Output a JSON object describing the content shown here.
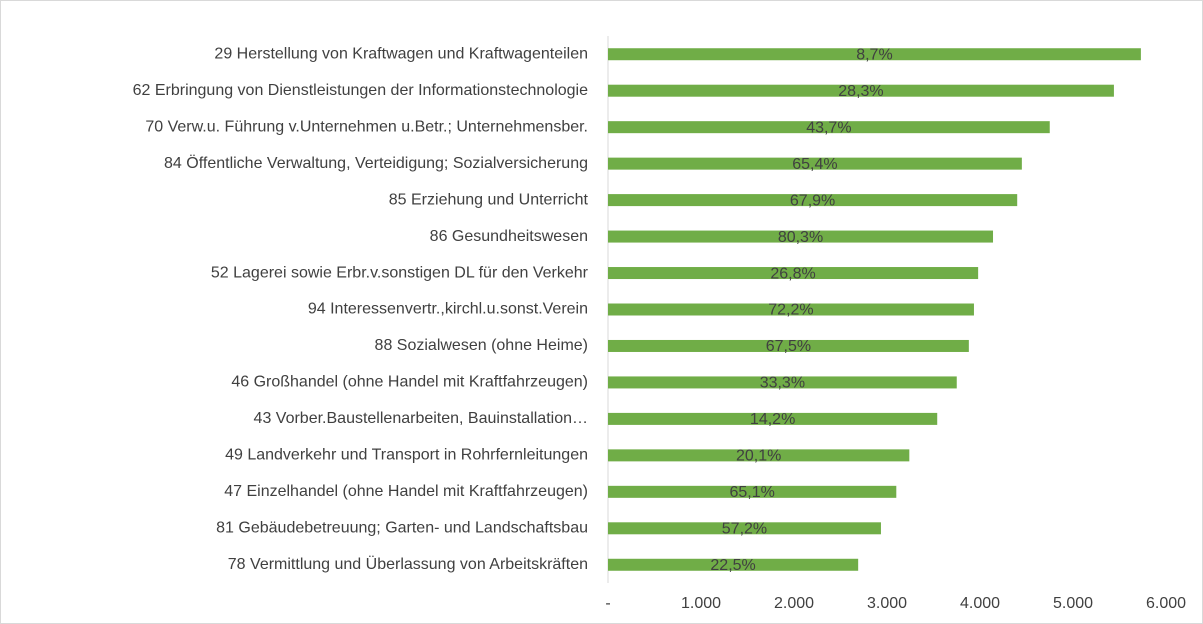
{
  "chart_data": {
    "type": "hbar",
    "categories": [
      "29 Herstellung von Kraftwagen und Kraftwagenteilen",
      "62 Erbringung von Dienstleistungen der Informationstechnologie",
      "70 Verw.u. Führung v.Unternehmen u.Betr.; Unternehmensber.",
      "84 Öffentliche Verwaltung, Verteidigung; Sozialversicherung",
      "85 Erziehung und Unterricht",
      "86 Gesundheitswesen",
      "52 Lagerei sowie Erbr.v.sonstigen DL für den Verkehr",
      "94 Interessenvertr.,kirchl.u.sonst.Verein",
      "88 Sozialwesen (ohne Heime)",
      "46 Großhandel (ohne Handel mit Kraftfahrzeugen)",
      "43 Vorber.Baustellenarbeiten, Bauinstallation…",
      "49 Landverkehr und Transport in Rohrfernleitungen",
      "47 Einzelhandel (ohne Handel mit Kraftfahrzeugen)",
      "81 Gebäudebetreuung; Garten- und Landschaftsbau",
      "78 Vermittlung und Überlassung von Arbeitskräften"
    ],
    "values": [
      5730,
      5440,
      4750,
      4450,
      4400,
      4140,
      3980,
      3935,
      3880,
      3750,
      3540,
      3240,
      3100,
      2935,
      2690
    ],
    "annotations": [
      "8,7%",
      "28,3%",
      "43,7%",
      "65,4%",
      "67,9%",
      "80,3%",
      "26,8%",
      "72,2%",
      "67,5%",
      "33,3%",
      "14,2%",
      "20,1%",
      "65,1%",
      "57,2%",
      "22,5%"
    ],
    "color": "#70ad47",
    "xlim": [
      0,
      6000
    ],
    "xticks": [
      {
        "value": 0,
        "label": "-"
      },
      {
        "value": 1000,
        "label": "1.000"
      },
      {
        "value": 2000,
        "label": "2.000"
      },
      {
        "value": 3000,
        "label": "3.000"
      },
      {
        "value": 4000,
        "label": "4.000"
      },
      {
        "value": 5000,
        "label": "5.000"
      },
      {
        "value": 6000,
        "label": "6.000"
      }
    ]
  }
}
